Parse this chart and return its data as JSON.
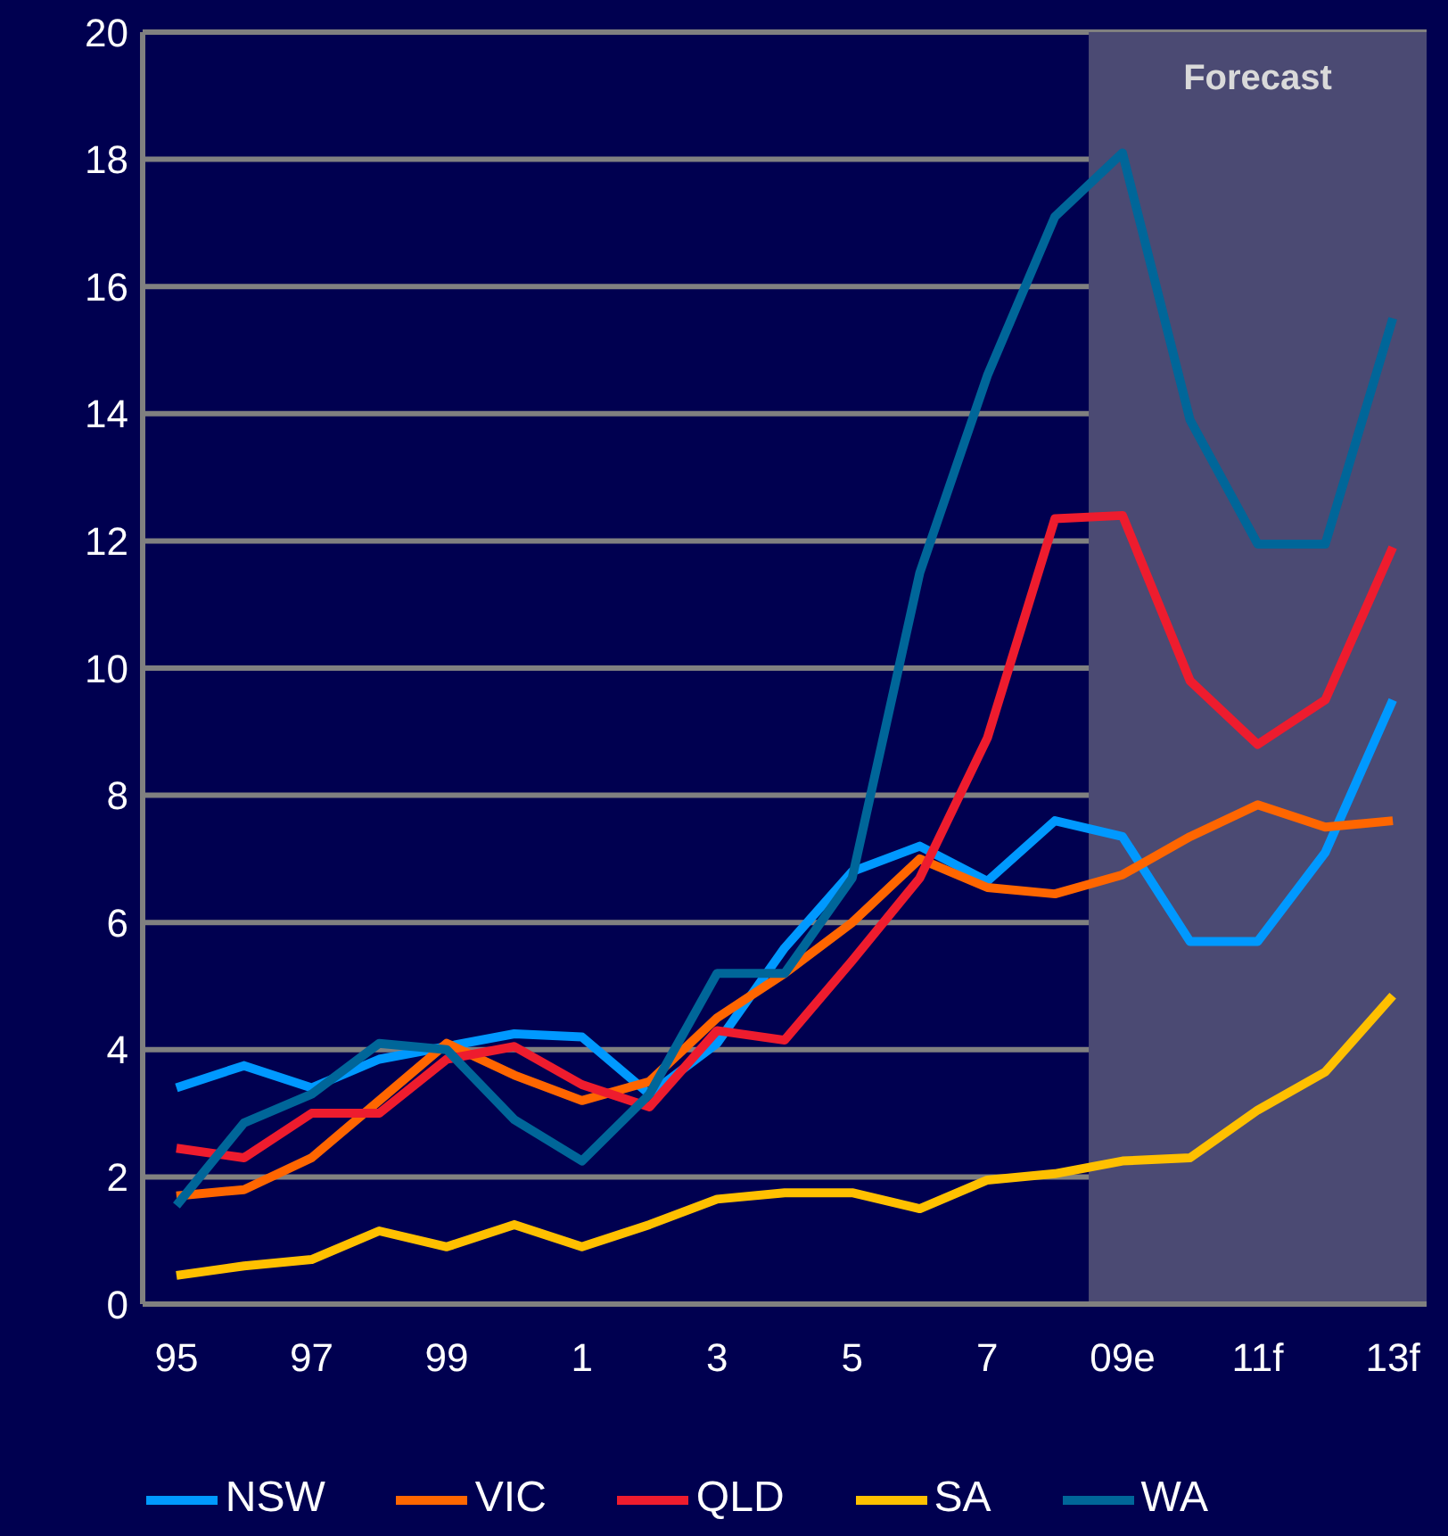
{
  "chart_data": {
    "type": "line",
    "categories": [
      "95",
      null,
      "97",
      null,
      "99",
      null,
      "1",
      null,
      "3",
      null,
      "5",
      null,
      "7",
      null,
      "09e",
      null,
      "11f",
      null,
      "13f"
    ],
    "series": [
      {
        "name": "NSW",
        "color": "#0099ff",
        "values": [
          3.4,
          3.75,
          3.4,
          3.85,
          4.05,
          4.25,
          4.2,
          3.3,
          4.1,
          5.6,
          6.8,
          7.2,
          6.65,
          7.6,
          7.35,
          5.7,
          5.7,
          7.1,
          9.5
        ]
      },
      {
        "name": "VIC",
        "color": "#ff6600",
        "values": [
          1.7,
          1.8,
          2.3,
          3.2,
          4.1,
          3.6,
          3.2,
          3.5,
          4.5,
          5.2,
          6.0,
          7.0,
          6.55,
          6.45,
          6.75,
          7.35,
          7.85,
          7.5,
          7.6
        ]
      },
      {
        "name": "QLD",
        "color": "#ee1c2e",
        "values": [
          2.45,
          2.3,
          3.0,
          3.0,
          3.85,
          4.05,
          3.45,
          3.1,
          4.3,
          4.15,
          5.4,
          6.7,
          8.9,
          12.35,
          12.4,
          9.8,
          8.8,
          9.5,
          11.9
        ]
      },
      {
        "name": "SA",
        "color": "#ffc000",
        "values": [
          0.45,
          0.6,
          0.7,
          1.15,
          0.9,
          1.25,
          0.9,
          1.25,
          1.65,
          1.75,
          1.75,
          1.5,
          1.95,
          2.05,
          2.25,
          2.3,
          3.05,
          3.65,
          4.85
        ]
      },
      {
        "name": "WA",
        "color": "#006699",
        "values": [
          1.55,
          2.85,
          3.3,
          4.1,
          4.0,
          2.9,
          2.25,
          3.3,
          5.2,
          5.2,
          6.7,
          11.5,
          14.6,
          17.1,
          18.1,
          13.9,
          11.95,
          11.95,
          15.5
        ]
      }
    ],
    "ylim": [
      0,
      20
    ],
    "yticks": [
      0,
      2,
      4,
      6,
      8,
      10,
      12,
      14,
      16,
      18,
      20
    ],
    "bands": [
      {
        "axis": "x",
        "from": "09e",
        "to": "13f",
        "label": "Forecast",
        "color": "#4b4a73"
      }
    ],
    "grid": "y",
    "legend": "bottom"
  }
}
